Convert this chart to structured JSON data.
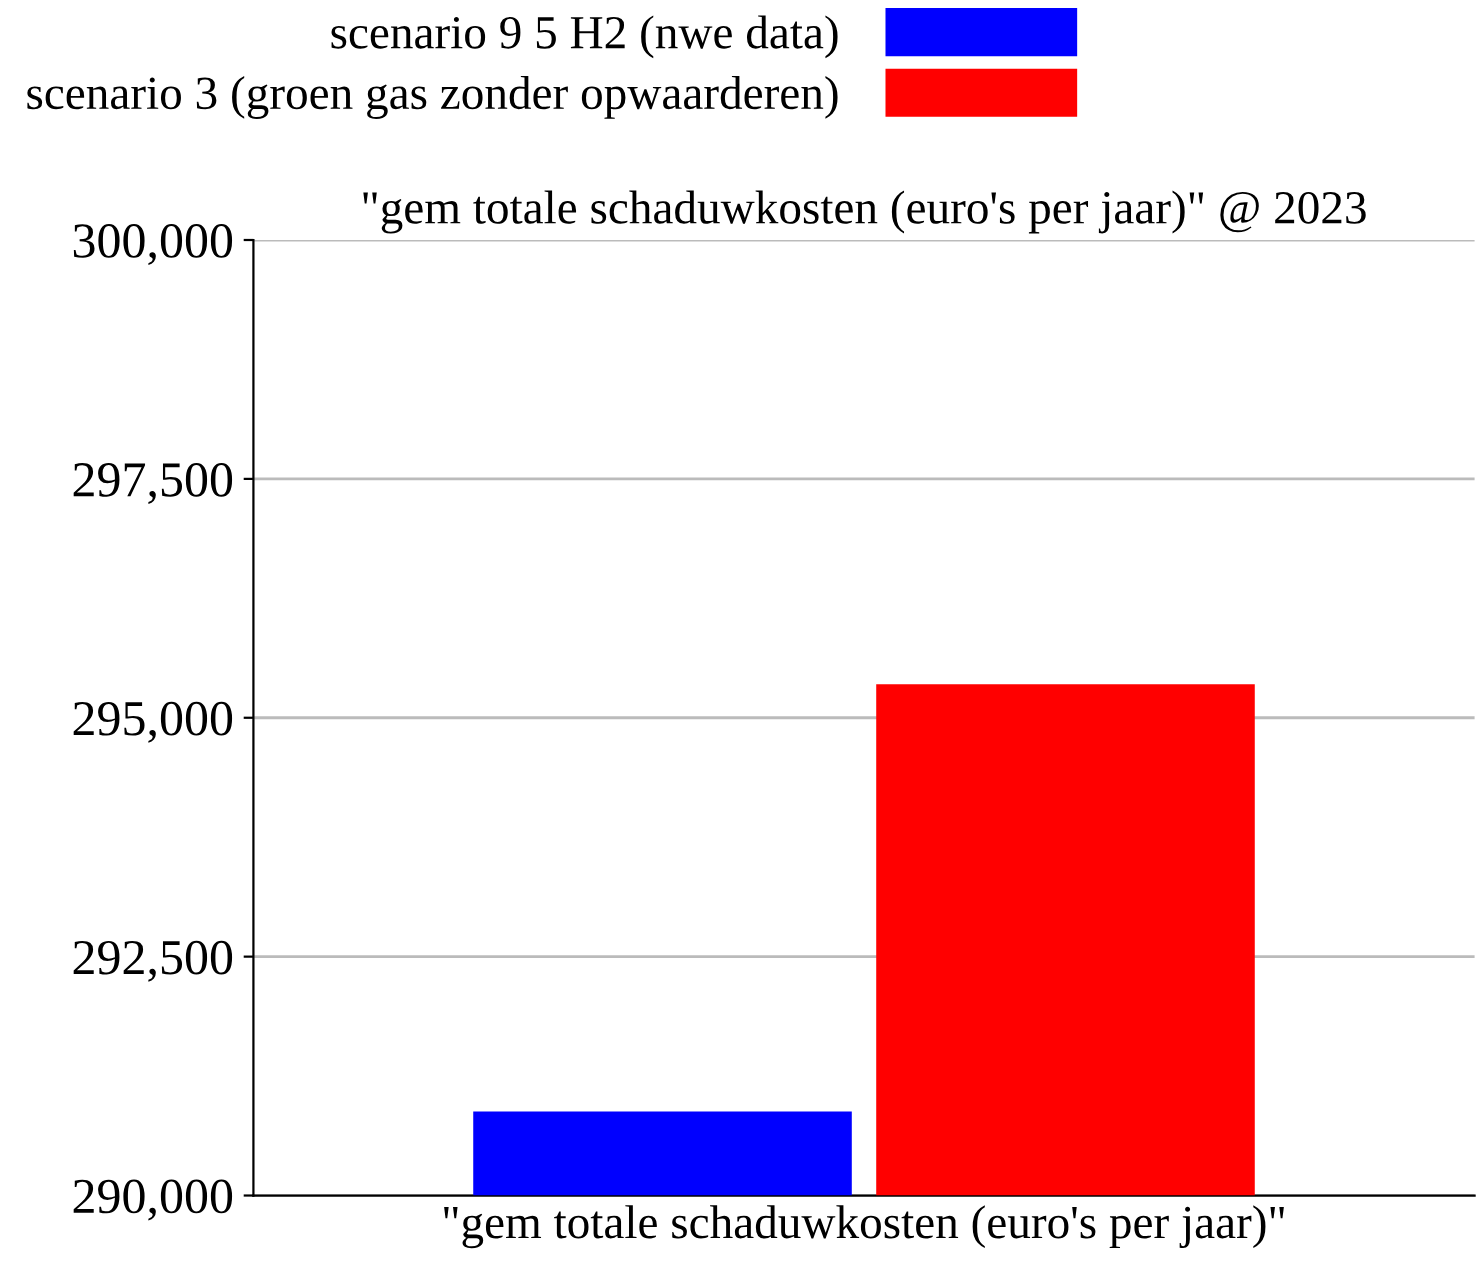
{
  "chart_data": {
    "type": "bar",
    "title": "\"gem totale schaduwkosten (euro's per jaar)\" @ 2023",
    "categories": [
      "\"gem totale schaduwkosten (euro's per jaar)\""
    ],
    "series": [
      {
        "name": "scenario 9 5 H2 (nwe data)",
        "color": "#0000ff",
        "values": [
          290880
        ]
      },
      {
        "name": "scenario 3 (groen gas zonder opwaarderen)",
        "color": "#ff0000",
        "values": [
          295350
        ]
      }
    ],
    "ylim": [
      290000,
      300000
    ],
    "yticks": [
      {
        "value": 290000,
        "label": "290,000"
      },
      {
        "value": 292500,
        "label": "292,500"
      },
      {
        "value": 295000,
        "label": "295,000"
      },
      {
        "value": 297500,
        "label": "297,500"
      },
      {
        "value": 300000,
        "label": "300,000"
      }
    ],
    "grid": "y",
    "legend": "top"
  }
}
